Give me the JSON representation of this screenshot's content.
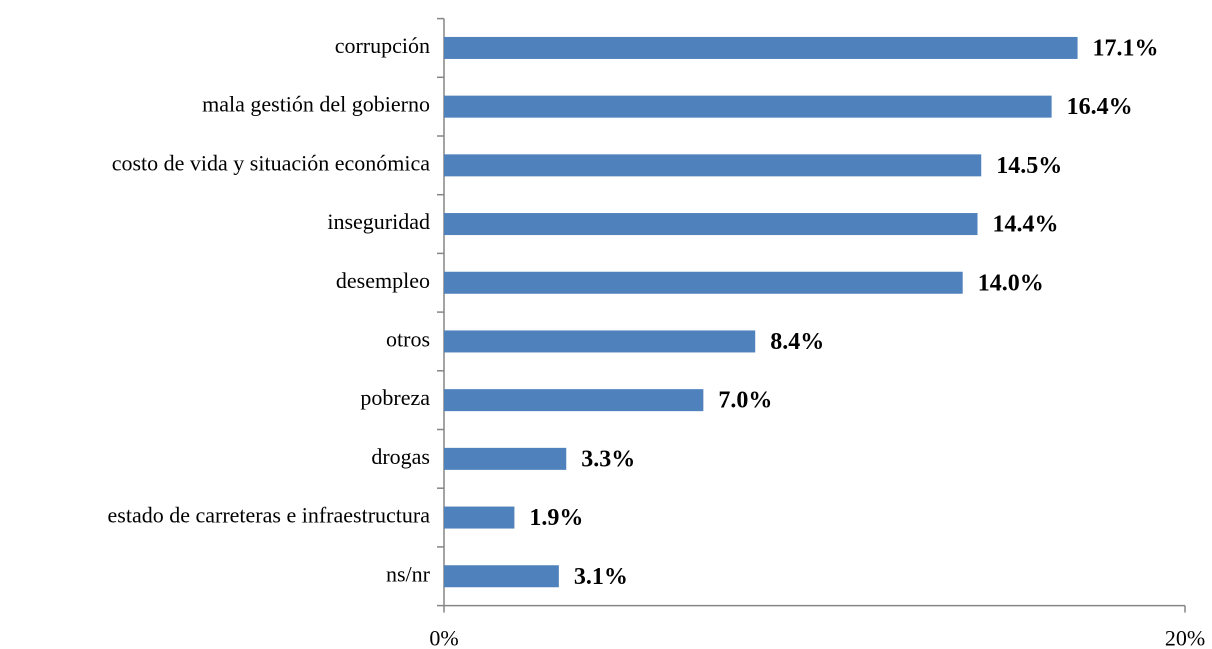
{
  "chart_data": {
    "type": "bar",
    "orientation": "horizontal",
    "categories": [
      "corrupción",
      "mala gestión del gobierno",
      "costo de vida y situación económica",
      "inseguridad",
      "desempleo",
      "otros",
      "pobreza",
      "drogas",
      "estado de carreteras e infraestructura",
      "ns/nr"
    ],
    "values": [
      17.1,
      16.4,
      14.5,
      14.4,
      14.0,
      8.4,
      7.0,
      3.3,
      1.9,
      3.1
    ],
    "value_labels": [
      "17.1%",
      "16.4%",
      "14.5%",
      "14.4%",
      "14.0%",
      "8.4%",
      "7.0%",
      "3.3%",
      "1.9%",
      "3.1%"
    ],
    "color": "#4f81bd",
    "xlim": [
      0,
      20
    ],
    "xticks": [
      {
        "value": 0,
        "label": "0%"
      },
      {
        "value": 20,
        "label": "20%"
      }
    ],
    "grid": false
  }
}
